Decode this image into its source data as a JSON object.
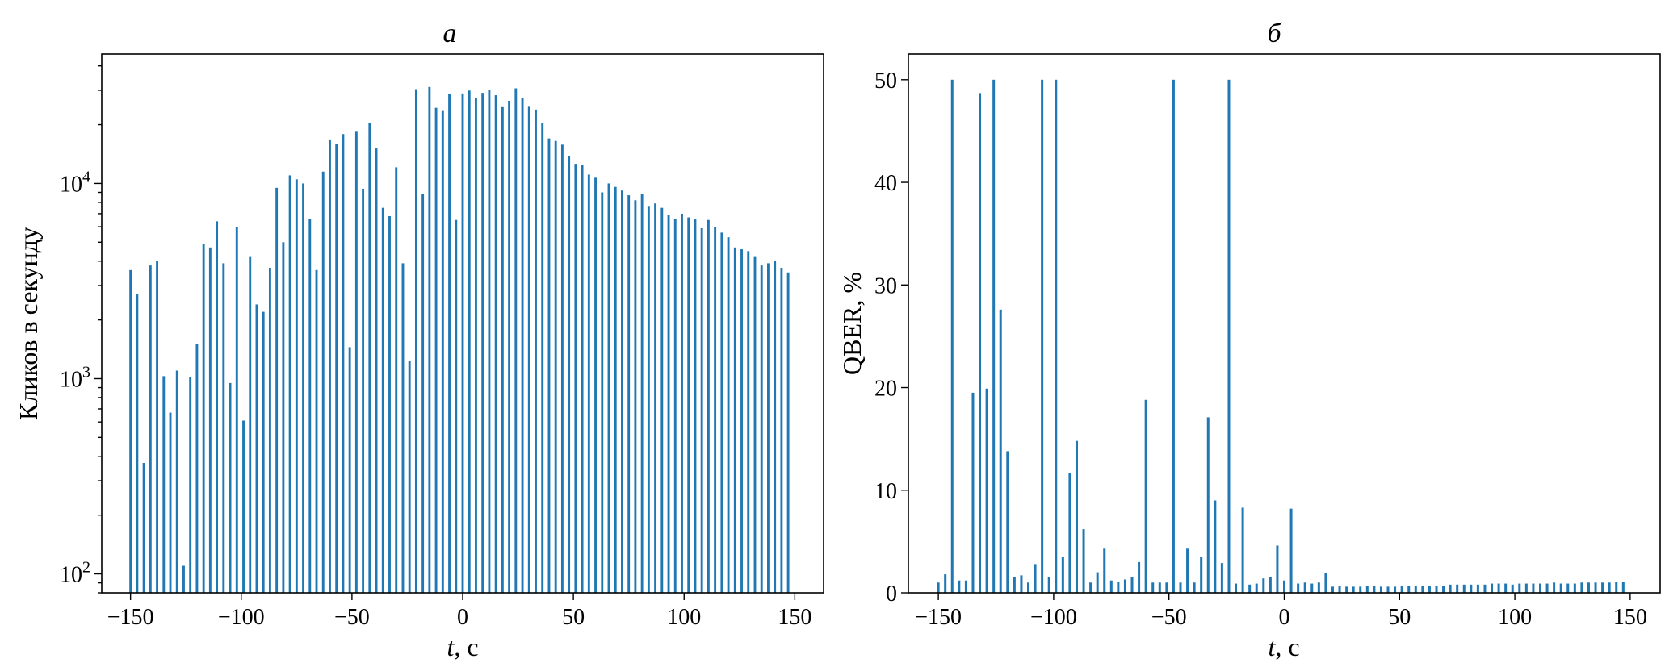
{
  "chart_data": [
    {
      "type": "bar",
      "panel_title": "а",
      "xlabel_var": "t",
      "xlabel_unit": ", с",
      "ylabel": "Кликов в секунду",
      "xlim": [
        -163,
        163
      ],
      "ylim": [
        80,
        46000
      ],
      "yscale": "log",
      "grid": false,
      "x_ticks": [
        -150,
        -100,
        -50,
        0,
        50,
        100,
        150
      ],
      "x_tick_labels": [
        "−150",
        "−100",
        "−50",
        "0",
        "50",
        "100",
        "150"
      ],
      "y_ticks": [
        {
          "value": 100,
          "base": "10",
          "exp": "2"
        },
        {
          "value": 1000,
          "base": "10",
          "exp": "3"
        },
        {
          "value": 10000,
          "base": "10",
          "exp": "4"
        }
      ],
      "color": "#1f77b4",
      "x": [
        -150,
        -147,
        -144,
        -141,
        -138,
        -135,
        -132,
        -129,
        -126,
        -123,
        -120,
        -117,
        -114,
        -111,
        -108,
        -105,
        -102,
        -99,
        -96,
        -93,
        -90,
        -87,
        -84,
        -81,
        -78,
        -75,
        -72,
        -69,
        -66,
        -63,
        -60,
        -57,
        -54,
        -51,
        -48,
        -45,
        -42,
        -39,
        -36,
        -33,
        -30,
        -27,
        -24,
        -21,
        -18,
        -15,
        -12,
        -9,
        -6,
        -3,
        0,
        3,
        6,
        9,
        12,
        15,
        18,
        21,
        24,
        27,
        30,
        33,
        36,
        39,
        42,
        45,
        48,
        51,
        54,
        57,
        60,
        63,
        66,
        69,
        72,
        75,
        78,
        81,
        84,
        87,
        90,
        93,
        96,
        99,
        102,
        105,
        108,
        111,
        114,
        117,
        120,
        123,
        126,
        129,
        132,
        135,
        138,
        141,
        144,
        147
      ],
      "values": [
        3600,
        2700,
        370,
        3800,
        4000,
        1030,
        670,
        1100,
        110,
        1020,
        1500,
        4900,
        4700,
        6400,
        3900,
        950,
        6000,
        610,
        4200,
        2400,
        2200,
        3700,
        9500,
        5000,
        11000,
        10500,
        10000,
        6600,
        3600,
        11500,
        16800,
        16000,
        17900,
        1450,
        18400,
        9400,
        20500,
        15100,
        7500,
        6800,
        12100,
        3900,
        1230,
        30400,
        8800,
        31200,
        24400,
        23500,
        28800,
        6500,
        28900,
        29900,
        27500,
        29100,
        30000,
        28300,
        24600,
        26500,
        30700,
        27500,
        24700,
        23900,
        20400,
        17000,
        16500,
        15800,
        13800,
        12600,
        12400,
        11100,
        10700,
        9000,
        10000,
        9600,
        9200,
        8700,
        8200,
        8800,
        7600,
        7900,
        7500,
        6900,
        6600,
        7000,
        6700,
        6600,
        5900,
        6500,
        6000,
        5600,
        5300,
        4700,
        4600,
        4500,
        4200,
        3800,
        3900,
        4000,
        3700,
        3500
      ]
    },
    {
      "type": "bar",
      "panel_title": "б",
      "xlabel_var": "t",
      "xlabel_unit": ", с",
      "ylabel": "QBER, %",
      "xlim": [
        -163,
        163
      ],
      "ylim": [
        0,
        52.5
      ],
      "yscale": "linear",
      "grid": false,
      "x_ticks": [
        -150,
        -100,
        -50,
        0,
        50,
        100,
        150
      ],
      "x_tick_labels": [
        "−150",
        "−100",
        "−50",
        "0",
        "50",
        "100",
        "150"
      ],
      "y_ticks": [
        0,
        10,
        20,
        30,
        40,
        50
      ],
      "y_tick_labels": [
        "0",
        "10",
        "20",
        "30",
        "40",
        "50"
      ],
      "color": "#1f77b4",
      "x": [
        -150,
        -147,
        -144,
        -141,
        -138,
        -135,
        -132,
        -129,
        -126,
        -123,
        -120,
        -117,
        -114,
        -111,
        -108,
        -105,
        -102,
        -99,
        -96,
        -93,
        -90,
        -87,
        -84,
        -81,
        -78,
        -75,
        -72,
        -69,
        -66,
        -63,
        -60,
        -57,
        -54,
        -51,
        -48,
        -45,
        -42,
        -39,
        -36,
        -33,
        -30,
        -27,
        -24,
        -21,
        -18,
        -15,
        -12,
        -9,
        -6,
        -3,
        0,
        3,
        6,
        9,
        12,
        15,
        18,
        21,
        24,
        27,
        30,
        33,
        36,
        39,
        42,
        45,
        48,
        51,
        54,
        57,
        60,
        63,
        66,
        69,
        72,
        75,
        78,
        81,
        84,
        87,
        90,
        93,
        96,
        99,
        102,
        105,
        108,
        111,
        114,
        117,
        120,
        123,
        126,
        129,
        132,
        135,
        138,
        141,
        144,
        147
      ],
      "values": [
        1.0,
        1.8,
        50,
        1.2,
        1.2,
        19.5,
        48.7,
        19.9,
        50,
        27.6,
        13.8,
        1.5,
        1.7,
        1.0,
        2.8,
        50,
        1.5,
        50,
        3.5,
        11.7,
        14.8,
        6.2,
        1.0,
        2.0,
        4.3,
        1.2,
        1.1,
        1.3,
        1.5,
        3.0,
        18.8,
        1.0,
        1.0,
        1.0,
        50,
        1.0,
        4.3,
        1.0,
        3.5,
        17.1,
        9.0,
        2.9,
        50,
        0.9,
        8.3,
        0.8,
        0.9,
        1.4,
        1.5,
        4.6,
        1.2,
        8.2,
        0.9,
        1.0,
        0.9,
        1.0,
        1.9,
        0.6,
        0.7,
        0.6,
        0.6,
        0.6,
        0.7,
        0.7,
        0.6,
        0.6,
        0.6,
        0.7,
        0.7,
        0.7,
        0.7,
        0.7,
        0.7,
        0.7,
        0.8,
        0.8,
        0.8,
        0.8,
        0.8,
        0.8,
        0.9,
        0.9,
        0.9,
        0.8,
        0.9,
        0.9,
        0.9,
        0.9,
        0.9,
        1.0,
        0.9,
        0.9,
        0.9,
        1.0,
        1.0,
        1.0,
        1.0,
        1.0,
        1.1,
        1.1
      ]
    }
  ]
}
